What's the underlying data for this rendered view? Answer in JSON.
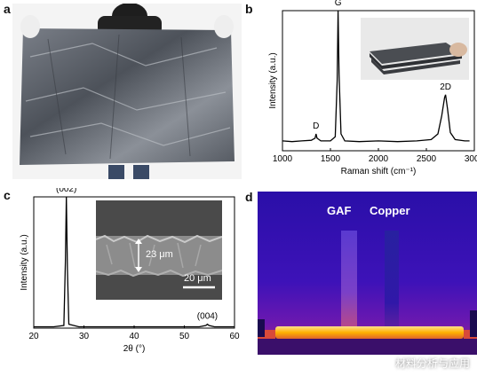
{
  "panels": {
    "a": {
      "label": "a"
    },
    "b": {
      "label": "b"
    },
    "c": {
      "label": "c"
    },
    "d": {
      "label": "d"
    }
  },
  "watermark": {
    "text": "材料分析与应用"
  },
  "chart_data": [
    {
      "panel": "b",
      "type": "line",
      "xlabel": "Raman shift (cm⁻¹)",
      "ylabel": "Intensity (a.u.)",
      "xlim": [
        1000,
        3000
      ],
      "ylim": [
        0,
        1
      ],
      "xticks": [
        1000,
        1500,
        2000,
        2500,
        3000
      ],
      "annotations": [
        {
          "text": "D",
          "x": 1350
        },
        {
          "text": "G",
          "x": 1580
        },
        {
          "text": "2D",
          "x": 2700
        }
      ],
      "x": [
        1000,
        1100,
        1200,
        1300,
        1340,
        1350,
        1360,
        1400,
        1500,
        1550,
        1570,
        1580,
        1590,
        1610,
        1650,
        1800,
        2000,
        2200,
        2400,
        2550,
        2620,
        2660,
        2690,
        2700,
        2720,
        2750,
        2800,
        2900,
        2950
      ],
      "y": [
        0.07,
        0.065,
        0.07,
        0.075,
        0.09,
        0.12,
        0.09,
        0.07,
        0.07,
        0.1,
        0.5,
        1.0,
        0.55,
        0.12,
        0.07,
        0.065,
        0.07,
        0.065,
        0.07,
        0.08,
        0.12,
        0.25,
        0.38,
        0.4,
        0.3,
        0.13,
        0.08,
        0.07,
        0.07
      ]
    },
    {
      "panel": "c",
      "type": "line",
      "xlabel": "2θ (°)",
      "ylabel": "Intensity (a.u.)",
      "xlim": [
        20,
        60
      ],
      "ylim": [
        0,
        1
      ],
      "xticks": [
        20,
        30,
        40,
        50,
        60
      ],
      "annotations": [
        {
          "text": "(002)",
          "x": 26.5
        },
        {
          "text": "(004)",
          "x": 54.6
        }
      ],
      "x": [
        20,
        24,
        26,
        26.3,
        26.5,
        26.7,
        27,
        29,
        35,
        45,
        53,
        54.3,
        54.6,
        54.9,
        56,
        60
      ],
      "y": [
        0.01,
        0.01,
        0.02,
        0.5,
        1.0,
        0.45,
        0.03,
        0.01,
        0.01,
        0.01,
        0.01,
        0.02,
        0.03,
        0.02,
        0.01,
        0.01
      ]
    }
  ],
  "inset_c": {
    "thickness": "23 μm",
    "scalebar": "20 μm"
  },
  "thermal": {
    "label_left": "GAF",
    "label_right": "Copper"
  }
}
